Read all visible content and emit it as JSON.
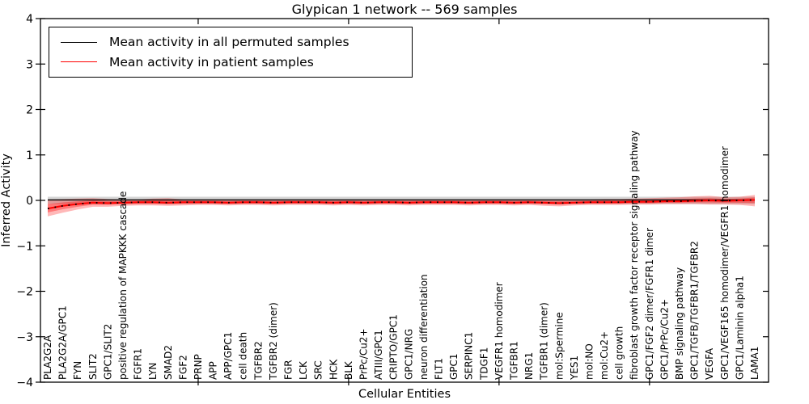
{
  "title": "Glypican 1 network -- 569 samples",
  "axes": {
    "xlabel": "Cellular Entities",
    "ylabel": "Inferred Activity"
  },
  "legend": {
    "position": "upper left",
    "entries": [
      {
        "label": "Mean activity in all permuted samples",
        "color": "#000000"
      },
      {
        "label": "Mean activity in patient samples",
        "color": "#ff0000"
      }
    ]
  },
  "chart_data": {
    "type": "line",
    "title": "Glypican 1 network -- 569 samples",
    "xlabel": "Cellular Entities",
    "ylabel": "Inferred Activity",
    "ylim": [
      -4,
      4
    ],
    "yticks": [
      -4,
      -3,
      -2,
      -1,
      0,
      1,
      2,
      3,
      4
    ],
    "ytick_labels": [
      "−4",
      "−3",
      "−2",
      "−1",
      "0",
      "1",
      "2",
      "3",
      "4"
    ],
    "xticks": [
      10,
      20,
      30,
      40
    ],
    "grid": false,
    "legend_position": "upper left",
    "categories": [
      "PLA2G2A",
      "PLA2G2A/GPC1",
      "FYN",
      "SLIT2",
      "GPC1/SLIT2",
      "positive regulation of MAPKKK cascade",
      "FGFR1",
      "LYN",
      "SMAD2",
      "FGF2",
      "PRNP",
      "APP",
      "APP/GPC1",
      "cell death",
      "TGFBR2",
      "TGFBR2 (dimer)",
      "FGR",
      "LCK",
      "SRC",
      "HCK",
      "BLK",
      "PrPc/Cu2+",
      "ATIII/GPC1",
      "CRIPTO/GPC1",
      "GPC1/NRG",
      "neuron differentiation",
      "FLT1",
      "GPC1",
      "SERPINC1",
      "TDGF1",
      "VEGFR1 homodimer",
      "TGFBR1",
      "NRG1",
      "TGFBR1 (dimer)",
      "mol:Spermine",
      "YES1",
      "mol:NO",
      "mol:Cu2+",
      "cell growth",
      "fibroblast growth factor receptor signaling pathway",
      "GPC1/FGF2 dimer/FGFR1 dimer",
      "GPC1/PrPc/Cu2+",
      "BMP signaling pathway",
      "GPC1/TGFB/TGFBR1/TGFBR2",
      "VEGFA",
      "GPC1/VEGF165 homodimer/VEGFR1 homodimer",
      "GPC1/Laminin alpha1",
      "LAMA1"
    ],
    "series": [
      {
        "name": "Mean activity in all permuted samples",
        "color": "#000000",
        "line_style": "solid",
        "band_color": "rgba(0,0,0,0.16)",
        "values": [
          0.01,
          0.01,
          0.01,
          0.01,
          0.01,
          0.01,
          0.01,
          0.01,
          0.01,
          0.01,
          0.01,
          0.01,
          0.01,
          0.01,
          0.01,
          0.01,
          0.01,
          0.01,
          0.01,
          0.01,
          0.01,
          0.01,
          0.01,
          0.01,
          0.01,
          0.01,
          0.01,
          0.01,
          0.01,
          0.01,
          0.01,
          0.01,
          0.01,
          0.01,
          0.01,
          0.01,
          0.01,
          0.01,
          0.01,
          0.01,
          0.01,
          0.01,
          0.01,
          0.01,
          0.01,
          0.01,
          0.01,
          0.01
        ],
        "band_low": [
          -0.08,
          -0.08,
          -0.08,
          -0.08,
          -0.08,
          -0.08,
          -0.08,
          -0.08,
          -0.08,
          -0.08,
          -0.08,
          -0.08,
          -0.08,
          -0.08,
          -0.08,
          -0.08,
          -0.08,
          -0.08,
          -0.08,
          -0.08,
          -0.08,
          -0.08,
          -0.08,
          -0.08,
          -0.08,
          -0.08,
          -0.08,
          -0.08,
          -0.08,
          -0.08,
          -0.08,
          -0.08,
          -0.08,
          -0.08,
          -0.08,
          -0.08,
          -0.08,
          -0.08,
          -0.08,
          -0.08,
          -0.08,
          -0.08,
          -0.08,
          -0.08,
          -0.08,
          -0.08,
          -0.08,
          -0.08
        ],
        "band_high": [
          0.08,
          0.08,
          0.08,
          0.08,
          0.08,
          0.08,
          0.08,
          0.08,
          0.08,
          0.08,
          0.08,
          0.08,
          0.08,
          0.08,
          0.08,
          0.08,
          0.08,
          0.08,
          0.08,
          0.08,
          0.08,
          0.08,
          0.08,
          0.08,
          0.08,
          0.08,
          0.08,
          0.08,
          0.08,
          0.08,
          0.08,
          0.08,
          0.08,
          0.08,
          0.08,
          0.08,
          0.08,
          0.08,
          0.08,
          0.08,
          0.08,
          0.08,
          0.08,
          0.08,
          0.08,
          0.08,
          0.08,
          0.08
        ]
      },
      {
        "name": "Mean activity in patient samples",
        "color": "#ff0000",
        "line_style": "solid-with-black-dotted-overlay",
        "band_color": "rgba(255,0,0,0.28)",
        "values": [
          -0.18,
          -0.12,
          -0.08,
          -0.05,
          -0.06,
          -0.05,
          -0.04,
          -0.04,
          -0.05,
          -0.04,
          -0.04,
          -0.04,
          -0.05,
          -0.04,
          -0.04,
          -0.05,
          -0.04,
          -0.04,
          -0.04,
          -0.05,
          -0.04,
          -0.05,
          -0.04,
          -0.04,
          -0.05,
          -0.04,
          -0.04,
          -0.04,
          -0.05,
          -0.04,
          -0.04,
          -0.05,
          -0.04,
          -0.05,
          -0.06,
          -0.05,
          -0.04,
          -0.04,
          -0.04,
          -0.03,
          -0.03,
          -0.02,
          -0.02,
          -0.01,
          0.0,
          -0.01,
          0.0,
          0.01
        ],
        "band_low": [
          -0.35,
          -0.27,
          -0.2,
          -0.14,
          -0.14,
          -0.12,
          -0.11,
          -0.11,
          -0.12,
          -0.11,
          -0.1,
          -0.1,
          -0.11,
          -0.1,
          -0.1,
          -0.11,
          -0.1,
          -0.1,
          -0.1,
          -0.11,
          -0.1,
          -0.11,
          -0.1,
          -0.1,
          -0.11,
          -0.1,
          -0.1,
          -0.1,
          -0.11,
          -0.1,
          -0.1,
          -0.11,
          -0.1,
          -0.12,
          -0.13,
          -0.11,
          -0.1,
          -0.1,
          -0.1,
          -0.09,
          -0.09,
          -0.08,
          -0.08,
          -0.08,
          -0.09,
          -0.09,
          -0.1,
          -0.13
        ],
        "band_high": [
          0.02,
          0.03,
          0.04,
          0.05,
          0.03,
          0.02,
          0.02,
          0.04,
          0.05,
          0.02,
          0.02,
          0.02,
          0.02,
          0.02,
          0.02,
          0.02,
          0.02,
          0.02,
          0.02,
          0.02,
          0.02,
          0.02,
          0.02,
          0.02,
          0.02,
          0.02,
          0.02,
          0.02,
          0.02,
          0.02,
          0.02,
          0.02,
          0.02,
          0.02,
          0.02,
          0.02,
          0.02,
          0.03,
          0.03,
          0.04,
          0.05,
          0.06,
          0.07,
          0.09,
          0.1,
          0.07,
          0.08,
          0.12
        ]
      }
    ]
  }
}
